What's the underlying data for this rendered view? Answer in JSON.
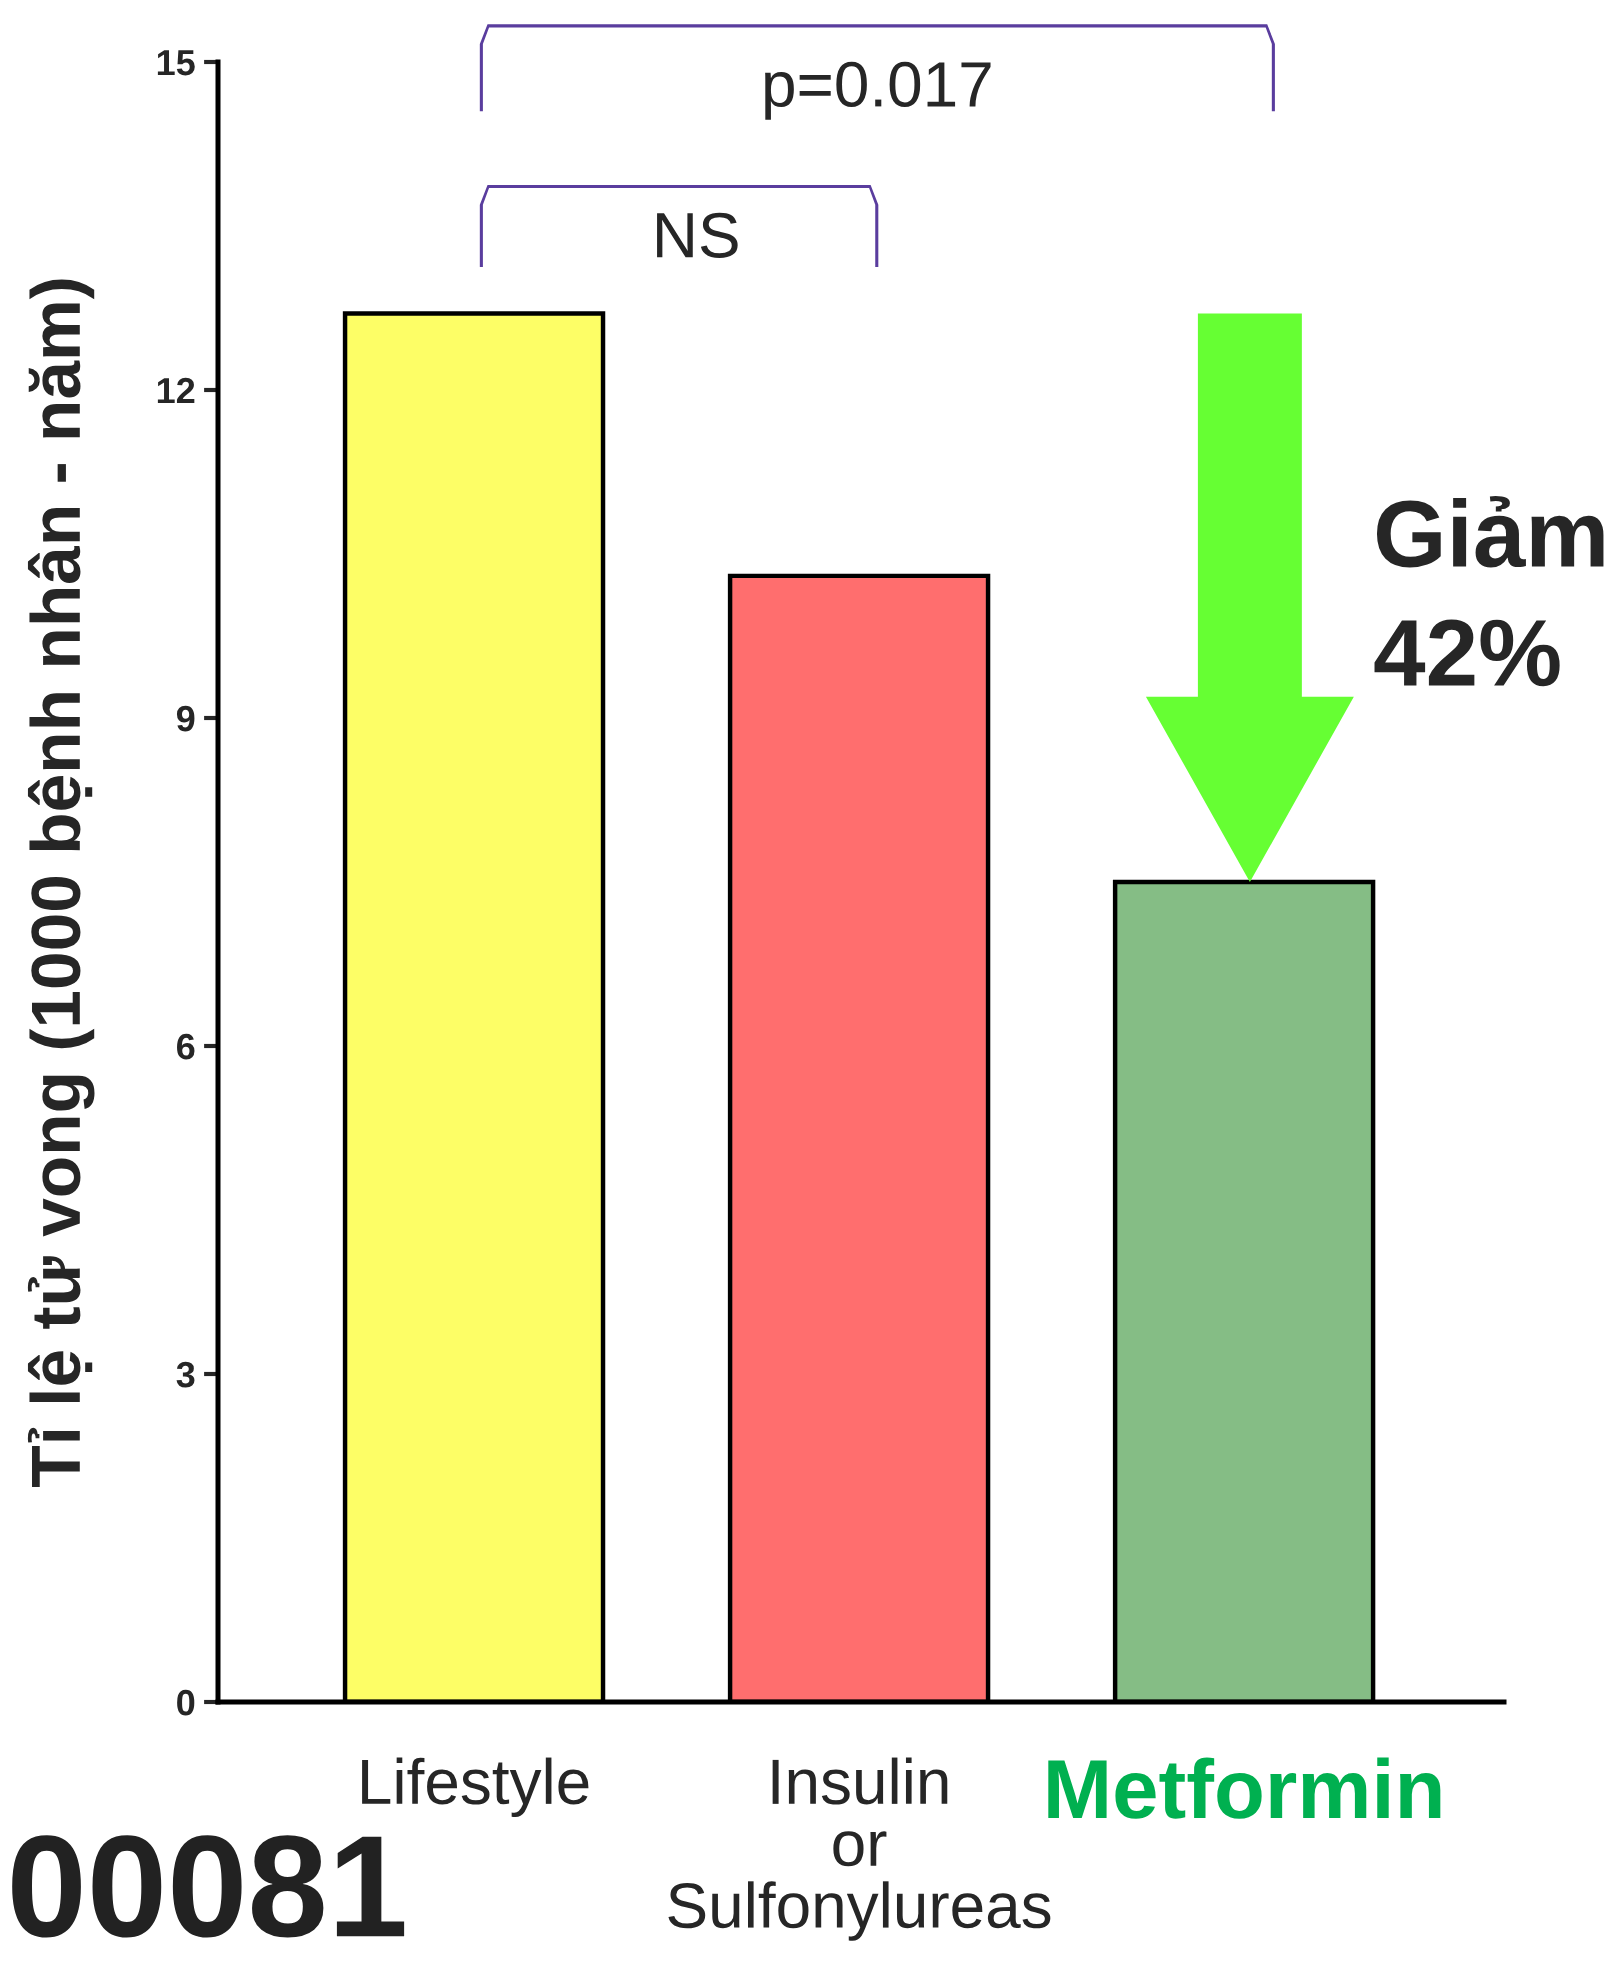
{
  "chart_data": {
    "type": "bar",
    "categories": [
      "Lifestyle",
      "Insulin\nor\nSulfonylureas",
      "Metformin"
    ],
    "values": [
      12.7,
      10.3,
      7.5
    ],
    "colors": [
      "#fdfe66",
      "#ff6e6e",
      "#85bd85"
    ],
    "ylabel": "Tỉ lệ tử vong (1000 bệnh nhân - năm)",
    "ylim": [
      0,
      15
    ],
    "yticks": [
      0,
      3,
      6,
      9,
      12,
      15
    ],
    "annotations": [
      "p=0.017",
      "NS",
      "Giảm\n42%",
      "00081"
    ]
  }
}
